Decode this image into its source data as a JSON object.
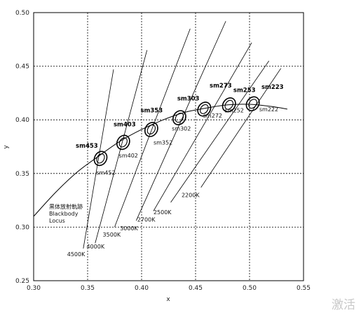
{
  "watermark": "激活",
  "chart_data": {
    "type": "scatter",
    "xlabel": "x",
    "ylabel": "y",
    "xlim": [
      0.3,
      0.55
    ],
    "ylim": [
      0.25,
      0.5
    ],
    "x_ticks": [
      "0.30",
      "0.35",
      "0.40",
      "0.45",
      "0.50",
      "0.55"
    ],
    "y_ticks": [
      "0.25",
      "0.30",
      "0.35",
      "0.40",
      "0.45",
      "0.50"
    ],
    "grid": true,
    "locus_label": [
      "黒体放射軌跡",
      "Blackbody",
      "Locus"
    ],
    "locus_points": [
      [
        0.3,
        0.31
      ],
      [
        0.32,
        0.332
      ],
      [
        0.34,
        0.351
      ],
      [
        0.36,
        0.366
      ],
      [
        0.38,
        0.38
      ],
      [
        0.4,
        0.391
      ],
      [
        0.42,
        0.4
      ],
      [
        0.44,
        0.407
      ],
      [
        0.46,
        0.411
      ],
      [
        0.48,
        0.414
      ],
      [
        0.5,
        0.4145
      ],
      [
        0.52,
        0.4125
      ],
      [
        0.535,
        0.41
      ]
    ],
    "isotherms": [
      {
        "label": "4500K",
        "x1": 0.346,
        "y1": 0.28,
        "x2": 0.374,
        "y2": 0.447
      },
      {
        "label": "4000K",
        "x1": 0.357,
        "y1": 0.285,
        "x2": 0.405,
        "y2": 0.465
      },
      {
        "label": "3500K",
        "x1": 0.375,
        "y1": 0.3,
        "x2": 0.445,
        "y2": 0.485
      },
      {
        "label": "3000K",
        "x1": 0.395,
        "y1": 0.306,
        "x2": 0.478,
        "y2": 0.492
      },
      {
        "label": "2700K",
        "x1": 0.411,
        "y1": 0.315,
        "x2": 0.502,
        "y2": 0.472
      },
      {
        "label": "2500K",
        "x1": 0.427,
        "y1": 0.323,
        "x2": 0.518,
        "y2": 0.455
      },
      {
        "label": "2200K",
        "x1": 0.455,
        "y1": 0.337,
        "x2": 0.529,
        "y2": 0.448
      }
    ],
    "isotherm_labels": [
      {
        "text": "4500K",
        "x": 0.331,
        "y": 0.273
      },
      {
        "text": "4000K",
        "x": 0.349,
        "y": 0.28
      },
      {
        "text": "3500K",
        "x": 0.364,
        "y": 0.291
      },
      {
        "text": "3000K",
        "x": 0.38,
        "y": 0.297
      },
      {
        "text": "2700K",
        "x": 0.396,
        "y": 0.305
      },
      {
        "text": "2500K",
        "x": 0.411,
        "y": 0.312
      },
      {
        "text": "2200K",
        "x": 0.437,
        "y": 0.328
      }
    ],
    "ellipses": [
      {
        "name": "sm453",
        "sub": "sm452",
        "x": 0.362,
        "y": 0.364,
        "angle": -60,
        "bold_dx": -0.023,
        "bold_dy": 0.01,
        "sub_dx": -0.004,
        "sub_dy": -0.015
      },
      {
        "name": "sm403",
        "sub": "sm402",
        "x": 0.383,
        "y": 0.379,
        "angle": -60,
        "bold_dx": -0.009,
        "bold_dy": 0.015,
        "sub_dx": -0.004,
        "sub_dy": -0.014
      },
      {
        "name": "sm353",
        "sub": "sm352",
        "x": 0.409,
        "y": 0.391,
        "angle": -58,
        "bold_dx": -0.01,
        "bold_dy": 0.016,
        "sub_dx": 0.002,
        "sub_dy": -0.014
      },
      {
        "name": "sm303",
        "sub": "sm302",
        "x": 0.435,
        "y": 0.402,
        "angle": -58,
        "bold_dx": -0.002,
        "bold_dy": 0.016,
        "sub_dx": -0.007,
        "sub_dy": -0.012
      },
      {
        "name": "sm273",
        "sub": "sm272",
        "x": 0.458,
        "y": 0.41,
        "angle": -55,
        "bold_dx": 0.005,
        "bold_dy": 0.02,
        "sub_dx": -0.001,
        "sub_dy": -0.008
      },
      {
        "name": "sm253",
        "sub": "sm252",
        "x": 0.481,
        "y": 0.414,
        "angle": -55,
        "bold_dx": 0.004,
        "bold_dy": 0.012,
        "sub_dx": -0.004,
        "sub_dy": -0.007
      },
      {
        "name": "sm223",
        "sub": "sm222",
        "x": 0.503,
        "y": 0.415,
        "angle": -55,
        "bold_dx": 0.008,
        "bold_dy": 0.014,
        "sub_dx": 0.006,
        "sub_dy": -0.007
      }
    ]
  }
}
